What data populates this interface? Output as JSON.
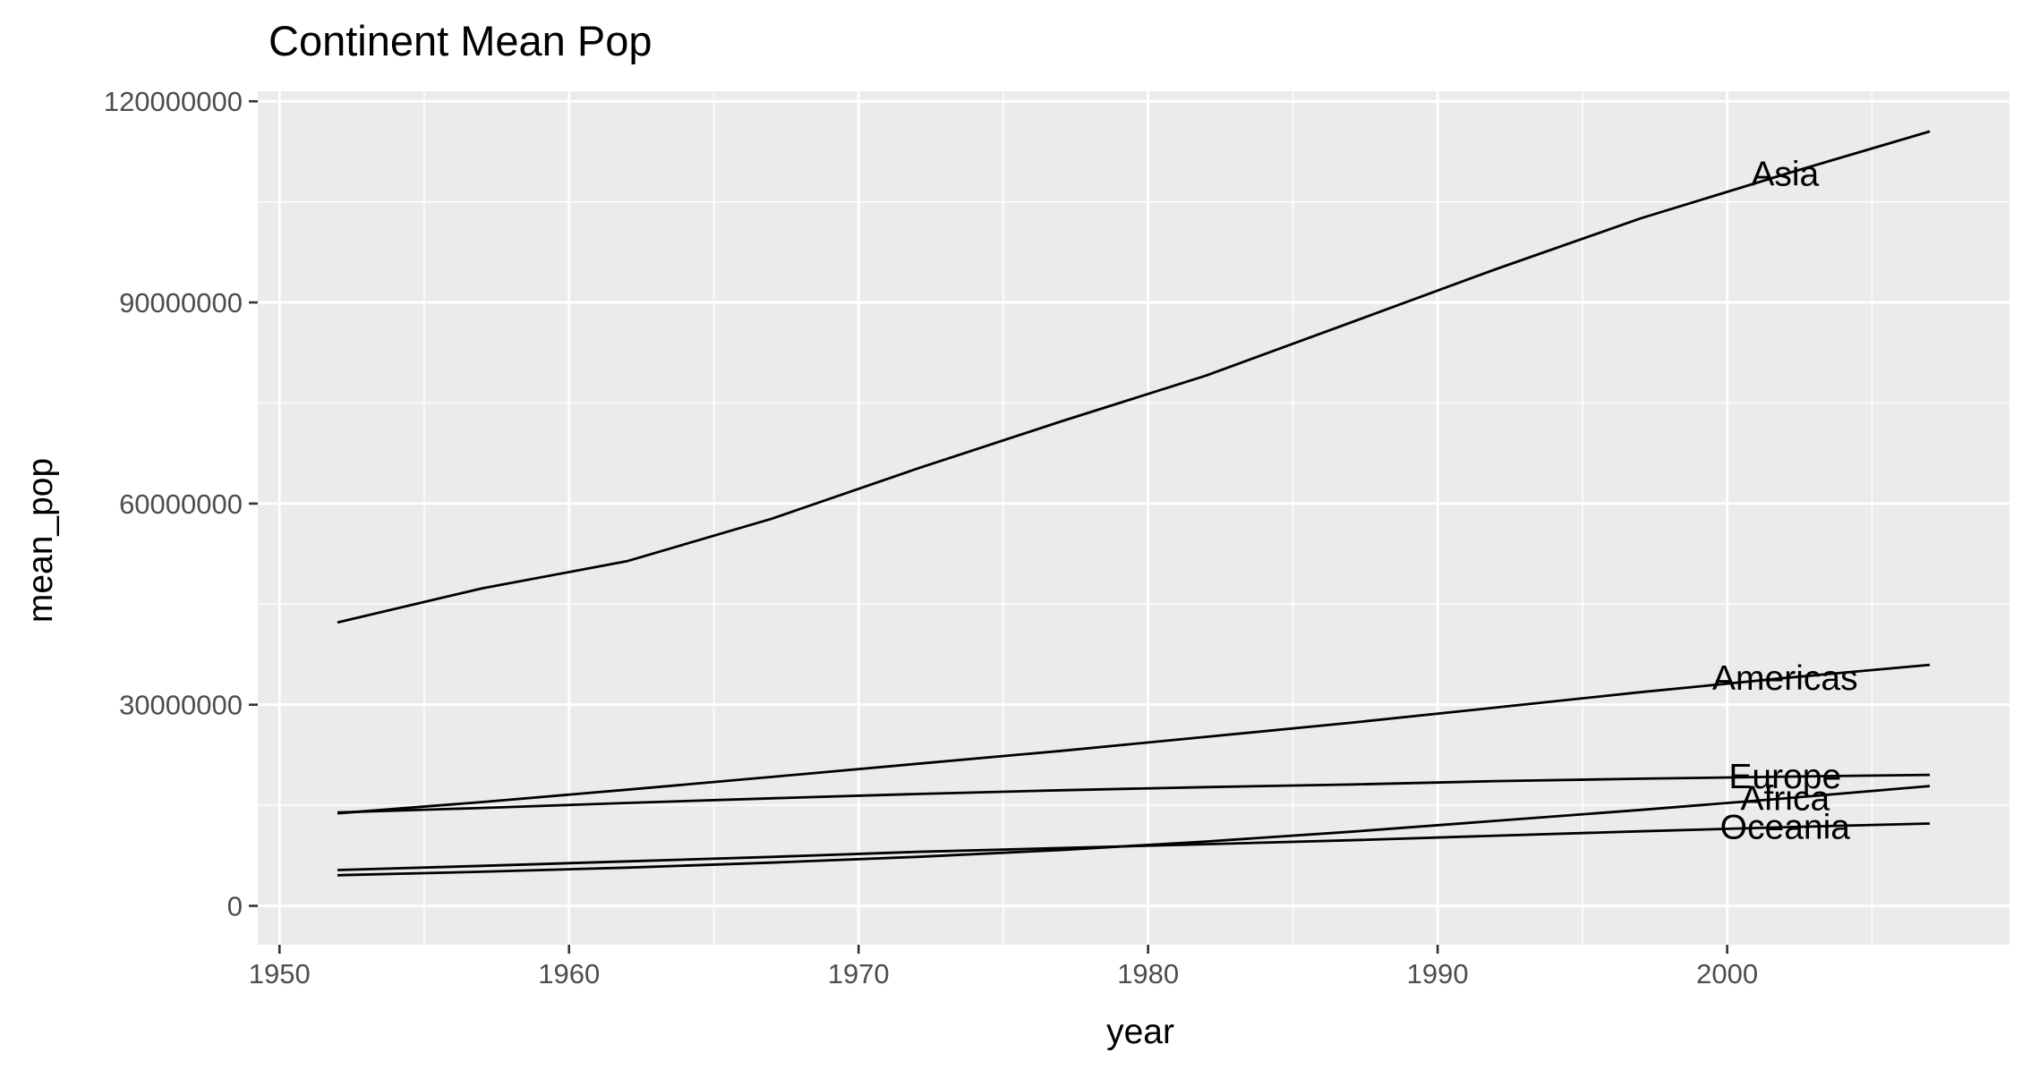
{
  "chart_data": {
    "type": "line",
    "title": "Continent Mean Pop",
    "xlabel": "year",
    "ylabel": "mean_pop",
    "x": [
      1952,
      1957,
      1962,
      1967,
      1972,
      1977,
      1982,
      1987,
      1992,
      1997,
      2002,
      2007
    ],
    "xlim": [
      1949.25,
      2009.75
    ],
    "ylim": [
      -5800000,
      121500000
    ],
    "xticks": [
      1950,
      1960,
      1970,
      1980,
      1990,
      2000
    ],
    "xtick_labels": [
      "1950",
      "1960",
      "1970",
      "1980",
      "1990",
      "2000"
    ],
    "yticks": [
      0,
      30000000,
      60000000,
      90000000,
      120000000
    ],
    "ytick_labels": [
      "0",
      "30000000",
      "60000000",
      "90000000",
      "120000000"
    ],
    "grid": true,
    "legend": "none",
    "line_color": "#000000",
    "panel_background": "#ebebeb",
    "grid_color": "#ffffff",
    "series": [
      {
        "name": "Asia",
        "values": [
          42283556,
          47356988,
          51404763,
          57747361,
          65180977,
          72257987,
          79095018,
          87006690,
          94948248,
          102523803,
          109145521,
          115513752
        ],
        "label_x": 2002
      },
      {
        "name": "Americas",
        "values": [
          13806098,
          15478157,
          17330810,
          19229865,
          21175368,
          23122708,
          25211637,
          27310159,
          29570964,
          31876016,
          33990910,
          35954847
        ],
        "label_x": 2002
      },
      {
        "name": "Europe",
        "values": [
          13937362,
          14596345,
          15345172,
          16039299,
          16687835,
          17238818,
          17708897,
          18103139,
          18604760,
          18964805,
          19274129,
          19536618
        ],
        "label_x": 2002
      },
      {
        "name": "Africa",
        "values": [
          4570010,
          5093033,
          5702247,
          6447875,
          7305376,
          8328097,
          9602857,
          11054502,
          12674645,
          14304480,
          16033152,
          17875763
        ],
        "label_x": 2002
      },
      {
        "name": "Oceania",
        "values": [
          5343003,
          5970988,
          6641759,
          7300207,
          8053050,
          8619500,
          9197425,
          9787208,
          10459826,
          11120715,
          11727415,
          12274974
        ],
        "label_x": 2002
      }
    ]
  }
}
